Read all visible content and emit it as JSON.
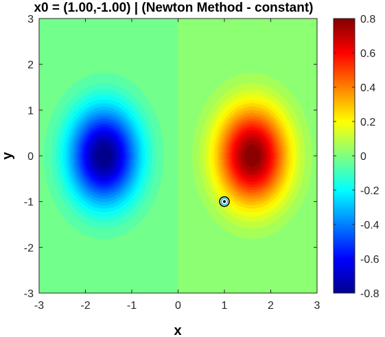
{
  "chart_data": {
    "type": "heatmap",
    "title": "x0 = (1.00,-1.00) | (Newton Method - constant)",
    "xlabel": "x",
    "ylabel": "y",
    "xlim": [
      -3,
      3
    ],
    "ylim": [
      -3,
      3
    ],
    "xticks": [
      "-3",
      "-2",
      "-1",
      "0",
      "1",
      "2",
      "3"
    ],
    "yticks": [
      "-3",
      "-2",
      "-1",
      "0",
      "1",
      "2",
      "3"
    ],
    "colormap": "jet",
    "clim": [
      -0.8,
      0.8
    ],
    "colorbar_ticks": [
      "-0.8",
      "-0.6",
      "-0.4",
      "-0.2",
      "0",
      "0.2",
      "0.4",
      "0.6",
      "0.8"
    ],
    "colorbar_values": [
      -0.8,
      -0.6,
      -0.4,
      -0.2,
      0,
      0.2,
      0.4,
      0.6,
      0.8
    ],
    "surface": {
      "description": "two gaussian-like extrema",
      "minimum": {
        "x": -1.6,
        "y": 0.0,
        "value": -0.8
      },
      "maximum": {
        "x": 1.6,
        "y": 0.0,
        "value": 0.8
      }
    },
    "marker": {
      "x": 1.0,
      "y": -1.0
    }
  }
}
